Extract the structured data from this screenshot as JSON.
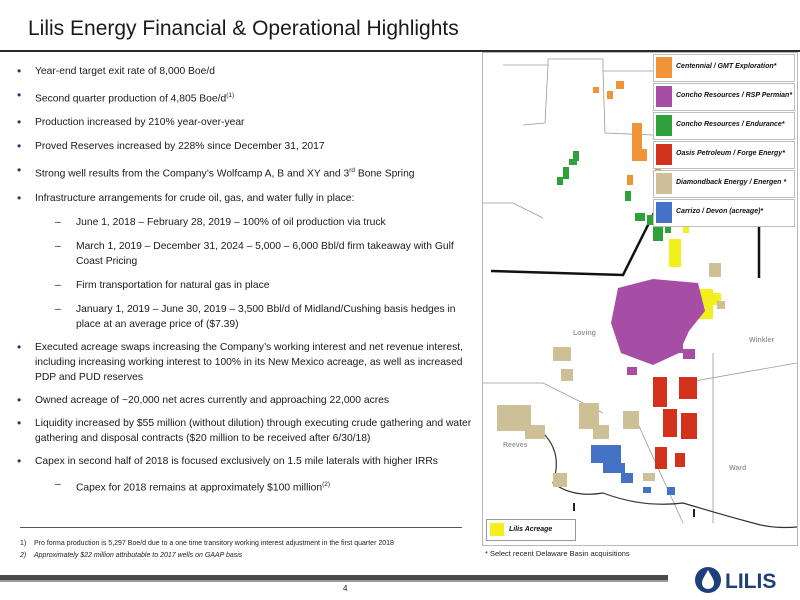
{
  "header": {
    "title": "Lilis Energy Financial & Operational Highlights"
  },
  "bullets": {
    "b1": "Year-end target exit rate of 8,000 Boe/d",
    "b2": "Second quarter production of 4,805 Boe/d",
    "b2_sup": "(1)",
    "b3": "Production increased by 210% year-over-year",
    "b4": "Proved Reserves increased by 228% since December 31, 2017",
    "b5_pre": "Strong well results from the Company’s Wolfcamp A, B and XY and 3",
    "b5_sup": "rd",
    "b5_post": " Bone Spring",
    "b6": "Infrastructure arrangements for crude oil, gas, and water fully in place:",
    "s1": "June 1, 2018 – February 28, 2019 – 100% of oil production via truck",
    "s2": "March 1, 2019 – December 31, 2024 – 5,000 – 6,000 Bbl/d firm takeaway with Gulf Coast Pricing",
    "s3": "Firm transportation for natural gas in place",
    "s4": "January 1, 2019 – June 30, 2019 – 3,500 Bbl/d of Midland/Cushing basis hedges in place at an average price of ($7.39)",
    "b7": "Executed acreage swaps increasing the Company’s working interest and net revenue interest, including increasing working interest to 100% in its New Mexico acreage, as well as increased PDP and PUD reserves",
    "b8": "Owned acreage of ~20,000 net acres currently and approaching 22,000 acres",
    "b9": "Liquidity increased by $55 million (without dilution) through executing crude gathering and water gathering and disposal contracts ($20 million to be received after 6/30/18)",
    "b10": "Capex in second half of 2018 is focused exclusively on 1.5 mile laterals with higher IRRs",
    "s5": "Capex for 2018 remains at approximately $100 million",
    "s5_sup": "(2)"
  },
  "footnotes": {
    "n1": "1)",
    "f1": "Pro forma production is 5,297 Boe/d due to a one time transitory working interest adjustment in the first quarter 2018",
    "n2": "2)",
    "f2": "Approximately $22 million attributable to 2017 wells on GAAP basis"
  },
  "map": {
    "legend": [
      {
        "label": "Centennial / GMT Exploration*",
        "color": "#f0943a"
      },
      {
        "label": "Concho Resources / RSP Permian*",
        "color": "#a64ea6"
      },
      {
        "label": "Concho Resources / Endurance*",
        "color": "#2ea23a"
      },
      {
        "label": "Oasis Petroleum / Forge Energy*",
        "color": "#d2321c"
      },
      {
        "label": "Diamondback Energy / Energen *",
        "color": "#cdbf96"
      },
      {
        "label": "Carrizo / Devon (acreage)*",
        "color": "#4472c4"
      }
    ],
    "lilis_label": "Lilis Acreage",
    "lilis_color": "#f2ef1c",
    "place_labels": {
      "loving": "Loving",
      "winkler": "Winkler",
      "reeves": "Reeves",
      "ward": "Ward"
    },
    "note": "* Select recent Delaware Basin acquisitions"
  },
  "page": {
    "number": "4"
  },
  "logo": {
    "text": "LILIS"
  }
}
